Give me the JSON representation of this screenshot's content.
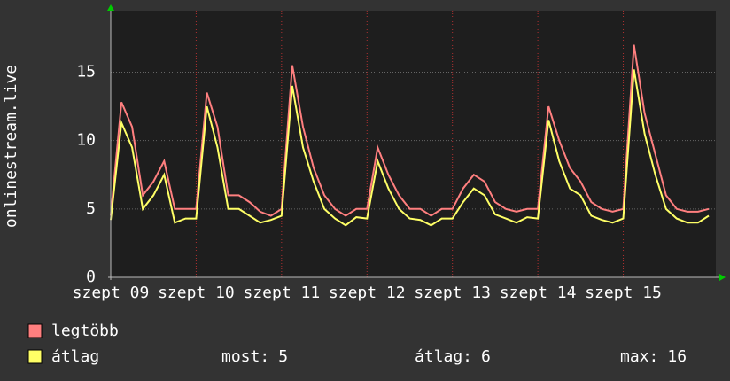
{
  "chart_data": {
    "type": "line",
    "y_label": "onlinestream.live",
    "x": [
      0,
      3,
      6,
      9,
      12,
      15,
      18,
      21,
      24,
      27,
      30,
      33,
      36,
      39,
      42,
      45,
      48,
      51,
      54,
      57,
      60,
      63,
      66,
      69,
      72,
      75,
      78,
      81,
      84,
      87,
      90,
      93,
      96,
      99,
      102,
      105,
      108,
      111,
      114,
      117,
      120,
      123,
      126,
      129,
      132,
      135,
      138,
      141,
      144,
      147,
      150,
      153,
      156,
      159,
      162,
      165,
      168
    ],
    "xlim": [
      0,
      170
    ],
    "xticks": [
      {
        "value": 0,
        "label": "szept 09"
      },
      {
        "value": 24,
        "label": "szept 10"
      },
      {
        "value": 48,
        "label": "szept 11"
      },
      {
        "value": 72,
        "label": "szept 12"
      },
      {
        "value": 96,
        "label": "szept 13"
      },
      {
        "value": 120,
        "label": "szept 14"
      },
      {
        "value": 144,
        "label": "szept 15"
      }
    ],
    "ylim": [
      0,
      19.5
    ],
    "yticks": [
      0,
      5,
      10,
      15
    ],
    "grid": true,
    "series": [
      {
        "name": "legtöbb",
        "color": "#ff7f7f",
        "values": [
          4.5,
          12.8,
          11,
          6,
          7,
          8.5,
          5,
          5,
          5,
          13.5,
          11,
          6,
          6,
          5.5,
          4.8,
          4.5,
          5,
          15.5,
          11,
          8,
          6,
          5,
          4.5,
          5,
          5,
          9.5,
          7.5,
          6,
          5,
          5,
          4.5,
          5,
          5,
          6.5,
          7.5,
          7,
          5.5,
          5,
          4.8,
          5,
          5,
          12.5,
          10,
          8,
          7,
          5.5,
          5,
          4.8,
          5,
          17,
          12,
          9,
          6,
          5,
          4.8,
          4.8,
          5
        ]
      },
      {
        "name": "átlag",
        "color": "#ffff66",
        "values": [
          4.2,
          11.3,
          9.5,
          5,
          6,
          7.5,
          4,
          4.3,
          4.3,
          12.5,
          9.5,
          5,
          5,
          4.5,
          4,
          4.2,
          4.5,
          14,
          9.5,
          7,
          5,
          4.3,
          3.8,
          4.4,
          4.3,
          8.5,
          6.5,
          5,
          4.3,
          4.2,
          3.8,
          4.3,
          4.3,
          5.5,
          6.5,
          6,
          4.6,
          4.3,
          4,
          4.4,
          4.3,
          11.5,
          8.5,
          6.5,
          6,
          4.5,
          4.2,
          4,
          4.3,
          15.2,
          10.5,
          7.5,
          5,
          4.3,
          4,
          4,
          4.5
        ]
      }
    ],
    "stats": [
      {
        "label": "most:",
        "value": 5
      },
      {
        "label": "átlag:",
        "value": 6
      },
      {
        "label": "max:",
        "value": 16
      }
    ]
  }
}
